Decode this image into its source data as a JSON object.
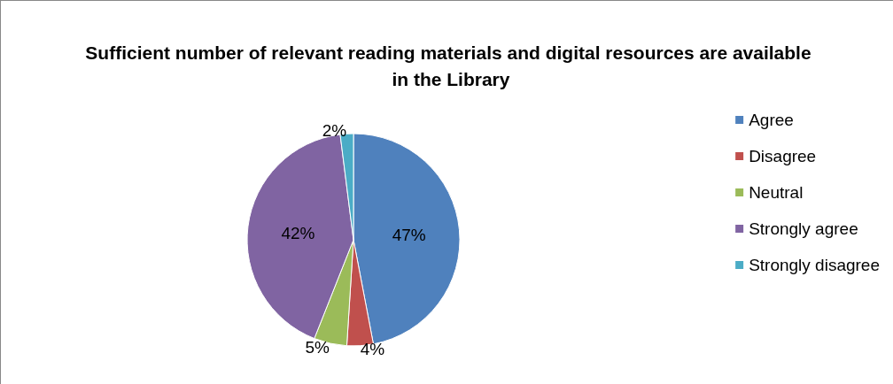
{
  "chart_data": {
    "type": "pie",
    "title": "Sufficient number of relevant reading materials and digital resources are available in the Library",
    "categories": [
      "Agree",
      "Disagree",
      "Neutral",
      "Strongly agree",
      "Strongly disagree"
    ],
    "values": [
      47,
      4,
      5,
      42,
      2
    ],
    "value_labels": [
      "47%",
      "4%",
      "5%",
      "42%",
      "2%"
    ],
    "colors": [
      "#4f81bd",
      "#c0504d",
      "#9bbb59",
      "#8064a2",
      "#4bacc6"
    ],
    "legend": "right"
  }
}
